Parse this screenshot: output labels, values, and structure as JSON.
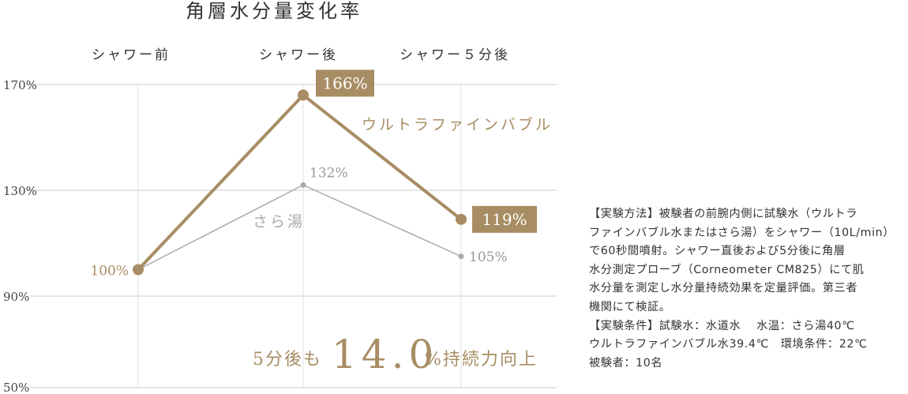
{
  "chart_data": {
    "type": "line",
    "title": "角層水分量変化率",
    "categories": [
      "シャワー前",
      "シャワー後",
      "シャワー５分後"
    ],
    "y_ticks": [
      "170%",
      "130%",
      "90%",
      "50%"
    ],
    "y_tick_values": [
      170,
      130,
      90,
      50
    ],
    "series": [
      {
        "name": "ウルトラファインバブル",
        "values": [
          100,
          166,
          119
        ],
        "labels": [
          "100%",
          "166%",
          "119%"
        ],
        "color": "#a88d64"
      },
      {
        "name": "さら湯",
        "values": [
          100,
          132,
          105
        ],
        "labels": [
          "",
          "132%",
          "105%"
        ],
        "color": "#aaaaaa"
      }
    ],
    "grid": true,
    "highlight": {
      "prefix": "5分後も",
      "value": "14.0",
      "suffix": "%持続力向上"
    }
  },
  "notes": [
    "【実験方法】被験者の前腕内側に試験水（ウルトラ",
    "ファインバブル水またはさら湯）をシャワー（10L/min）",
    "で60秒間噴射。シャワー直後および5分後に角層",
    "水分測定プローブ（Corneometer CM825）にて肌",
    "水分量を測定し水分量持続効果を定量評価。第三者",
    "機関にて検証。",
    "【実験条件】試験水：水道水　 水温：さら湯40℃",
    "ウルトラファインバブル水39.4℃　環境条件：22℃",
    "被験者：10名"
  ]
}
